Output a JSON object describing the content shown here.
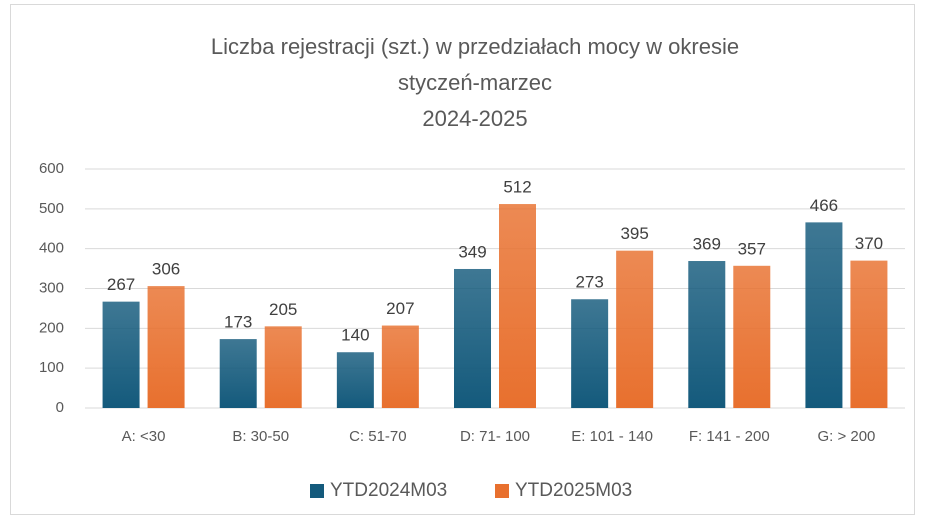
{
  "chart_data": {
    "type": "bar",
    "title": [
      "Liczba rejestracji (szt.) w przedziałach mocy w okresie",
      "styczeń-marzec",
      "2024-2025"
    ],
    "categories": [
      "A: <30",
      "B: 30-50",
      "C: 51-70",
      "D: 71- 100",
      "E: 101 - 140",
      "F: 141 - 200",
      "G: > 200"
    ],
    "series": [
      {
        "name": "YTD2024M03",
        "color": "#145a7c",
        "values": [
          267,
          173,
          140,
          349,
          273,
          369,
          466
        ]
      },
      {
        "name": "YTD2025M03",
        "color": "#e8702e",
        "values": [
          306,
          205,
          207,
          512,
          395,
          357,
          370
        ]
      }
    ],
    "ylim": [
      0,
      600
    ],
    "yticks": [
      0,
      100,
      200,
      300,
      400,
      500,
      600
    ],
    "grid": true,
    "legend": "bottom"
  }
}
